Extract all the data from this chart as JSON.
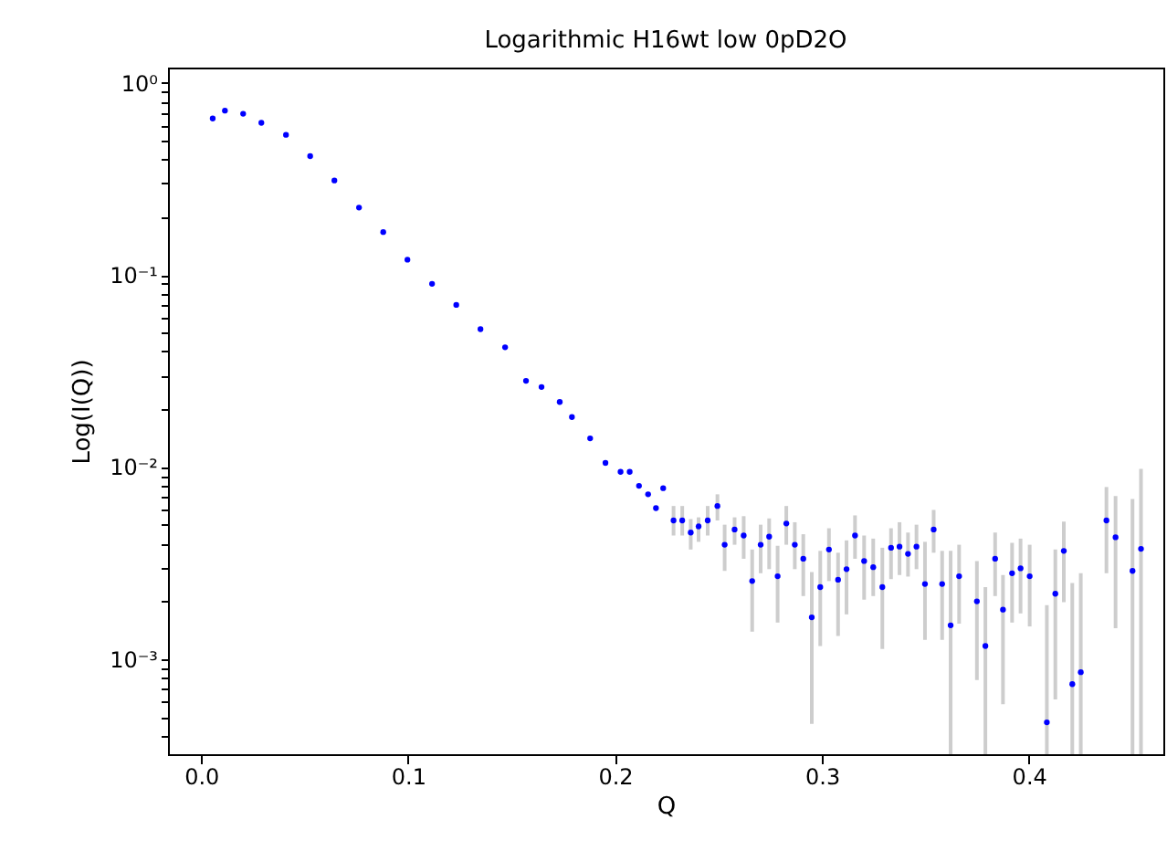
{
  "chart_data": {
    "type": "scatter",
    "title": "Logarithmic H16wt low 0pD2O",
    "xlabel": "Q",
    "ylabel": "Log(I(Q))",
    "log": "y",
    "grid": false,
    "marker": "circle",
    "xlim": [
      -0.016,
      0.465
    ],
    "ylim": [
      0.00032,
      1.2
    ],
    "xticks": [
      {
        "value": 0,
        "label": "0.0"
      },
      0.1,
      0.2,
      0.3,
      0.4
    ],
    "yticks": [
      {
        "value": 0.0004,
        "label": null
      },
      {
        "value": 0.0005,
        "label": null
      },
      {
        "value": 0.0006,
        "label": null
      },
      {
        "value": 0.0007,
        "label": null
      },
      {
        "value": 0.0008,
        "label": null
      },
      {
        "value": 0.0009,
        "label": null
      },
      {
        "value": 0.001,
        "label": "10⁻³"
      },
      {
        "value": 0.002,
        "label": null
      },
      {
        "value": 0.003,
        "label": null
      },
      {
        "value": 0.004,
        "label": null
      },
      {
        "value": 0.005,
        "label": null
      },
      {
        "value": 0.006,
        "label": null
      },
      {
        "value": 0.007,
        "label": null
      },
      {
        "value": 0.008,
        "label": null
      },
      {
        "value": 0.009,
        "label": null
      },
      {
        "value": 0.01,
        "label": "10⁻²"
      },
      {
        "value": 0.02,
        "label": null
      },
      {
        "value": 0.03,
        "label": null
      },
      {
        "value": 0.04,
        "label": null
      },
      {
        "value": 0.05,
        "label": null
      },
      {
        "value": 0.06,
        "label": null
      },
      {
        "value": 0.07,
        "label": null
      },
      {
        "value": 0.08,
        "label": null
      },
      {
        "value": 0.09,
        "label": null
      },
      {
        "value": 0.1,
        "label": "10⁻¹"
      },
      {
        "value": 0.2,
        "label": null
      },
      {
        "value": 0.3,
        "label": null
      },
      {
        "value": 0.4,
        "label": null
      },
      {
        "value": 0.5,
        "label": null
      },
      {
        "value": 0.6,
        "label": null
      },
      {
        "value": 0.7,
        "label": null
      },
      {
        "value": 0.8,
        "label": null
      },
      {
        "value": 0.9,
        "label": null
      },
      {
        "value": 1,
        "label": "10⁰"
      }
    ],
    "series": [
      {
        "color": "#0000ff",
        "x": [
          0.0056,
          0.0115,
          0.0203,
          0.0291,
          0.041,
          0.0527,
          0.0644,
          0.0763,
          0.088,
          0.0997,
          0.1116,
          0.1233,
          0.135,
          0.1469,
          0.157,
          0.1645,
          0.1733,
          0.1792,
          0.188,
          0.1954,
          0.2027,
          0.2071,
          0.2116,
          0.216,
          0.2198,
          0.2233,
          0.2283,
          0.2325,
          0.2366,
          0.2404,
          0.2448,
          0.2495,
          0.253,
          0.2578,
          0.2622,
          0.2663,
          0.2704,
          0.2745,
          0.2786,
          0.2828,
          0.2869,
          0.291,
          0.2951,
          0.2992,
          0.3034,
          0.3078,
          0.3119,
          0.316,
          0.3204,
          0.3248,
          0.3292,
          0.3334,
          0.3375,
          0.3416,
          0.3457,
          0.3498,
          0.354,
          0.3581,
          0.3622,
          0.3663,
          0.3749,
          0.379,
          0.3837,
          0.3875,
          0.3919,
          0.396,
          0.4004,
          0.4087,
          0.4128,
          0.4169,
          0.421,
          0.4251,
          0.4375,
          0.4419,
          0.4501,
          0.4542
        ],
        "values": [
          0.652,
          0.716,
          0.69,
          0.619,
          0.536,
          0.415,
          0.31,
          0.224,
          0.167,
          0.12,
          0.0899,
          0.0698,
          0.0522,
          0.042,
          0.0281,
          0.0261,
          0.0218,
          0.0182,
          0.0141,
          0.0105,
          0.00944,
          0.00944,
          0.00798,
          0.00721,
          0.00611,
          0.00776,
          0.00527,
          0.00527,
          0.00456,
          0.00491,
          0.00527,
          0.00627,
          0.00394,
          0.00473,
          0.0044,
          0.00255,
          0.00394,
          0.00434,
          0.0027,
          0.00508,
          0.00394,
          0.00333,
          0.00165,
          0.00237,
          0.00372,
          0.00259,
          0.00294,
          0.0044,
          0.00324,
          0.00301,
          0.00237,
          0.0038,
          0.00385,
          0.00353,
          0.00385,
          0.00246,
          0.00473,
          0.00246,
          0.0015,
          0.0027,
          0.002,
          0.00117,
          0.00333,
          0.00181,
          0.0028,
          0.00297,
          0.0027,
          0.000469,
          0.00219,
          0.00366,
          0.000741,
          0.000855,
          0.00527,
          0.00431,
          0.00288,
          0.00375
        ],
        "errors": [
          null,
          null,
          null,
          null,
          null,
          null,
          null,
          null,
          null,
          null,
          null,
          null,
          null,
          null,
          null,
          null,
          null,
          null,
          null,
          null,
          null,
          null,
          null,
          null,
          null,
          null,
          [
            0.0044,
            0.00627
          ],
          [
            0.0044,
            0.00627
          ],
          [
            0.00372,
            0.00536
          ],
          [
            0.00408,
            0.00547
          ],
          [
            0.0044,
            0.00627
          ],
          [
            0.00527,
            0.00721
          ],
          [
            0.00288,
            0.00501
          ],
          [
            0.00394,
            0.00547
          ],
          [
            0.00333,
            0.00555
          ],
          [
            0.00139,
            0.00372
          ],
          [
            0.0028,
            0.00501
          ],
          [
            0.00294,
            0.0054
          ],
          [
            0.00155,
            0.00389
          ],
          [
            0.00394,
            0.00627
          ],
          [
            0.00294,
            0.00516
          ],
          [
            0.00213,
            0.00447
          ],
          [
            0.000461,
            0.00284
          ],
          [
            0.00117,
            0.00366
          ],
          [
            0.00255,
            0.0048
          ],
          [
            0.00132,
            0.00358
          ],
          [
            0.00171,
            0.00415
          ],
          [
            0.00333,
            0.0056
          ],
          [
            0.00204,
            0.0044
          ],
          [
            0.00213,
            0.00424
          ],
          [
            0.00113,
            0.0038
          ],
          [
            0.00261,
            0.0048
          ],
          [
            0.00274,
            0.00516
          ],
          [
            0.00269,
            0.00456
          ],
          [
            0.00294,
            0.00501
          ],
          [
            0.00126,
            0.00408
          ],
          [
            0.00358,
            0.00598
          ],
          [
            0.00126,
            0.00366
          ],
          [
            0.00032,
            0.00366
          ],
          [
            0.00153,
            0.00394
          ],
          [
            0.000778,
            0.00324
          ],
          [
            0.00032,
            0.00237
          ],
          [
            0.00213,
            0.00456
          ],
          [
            0.000582,
            0.00274
          ],
          [
            0.00155,
            0.00403
          ],
          [
            0.00173,
            0.00424
          ],
          [
            0.00148,
            0.00394
          ],
          [
            0.00032,
            0.00191
          ],
          [
            0.000617,
            0.00372
          ],
          [
            0.00198,
            0.0052
          ],
          [
            0.00032,
            0.00249
          ],
          [
            0.00032,
            0.0028
          ],
          [
            0.0028,
            0.00787
          ],
          [
            0.00145,
            0.00706
          ],
          [
            0.00032,
            0.00681
          ],
          [
            0.00032,
            0.00979
          ]
        ]
      }
    ]
  }
}
